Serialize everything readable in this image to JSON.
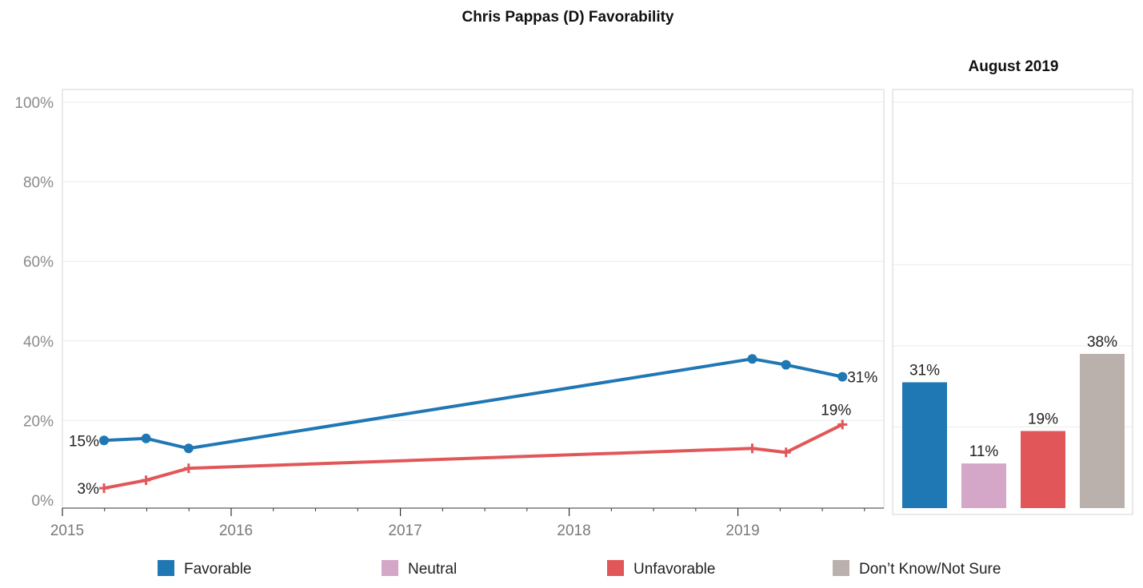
{
  "chart_data": [
    {
      "type": "line",
      "title": "Chris Pappas (D) Favorability",
      "x_axis": {
        "type": "date",
        "ticks": [
          "2015",
          "2016",
          "2017",
          "2018",
          "2019"
        ],
        "range": [
          "2015-01-01",
          "2019-10-01"
        ]
      },
      "y_axis": {
        "ticks": [
          "0%",
          "20%",
          "40%",
          "60%",
          "80%",
          "100%"
        ],
        "range": [
          0,
          100
        ]
      },
      "grid": true,
      "series": [
        {
          "name": "Favorable",
          "color": "#1f77b4",
          "marker": "circle",
          "x": [
            "2015-04-01",
            "2015-07-01",
            "2015-10-01",
            "2019-02-01",
            "2019-04-15",
            "2019-08-15"
          ],
          "values": [
            15,
            15.5,
            13,
            35.5,
            34,
            31
          ],
          "labels": [
            {
              "index": 0,
              "text": "15%"
            },
            {
              "index": 5,
              "text": "31%"
            }
          ]
        },
        {
          "name": "Unfavorable",
          "color": "#e15759",
          "marker": "plus",
          "x": [
            "2015-04-01",
            "2015-07-01",
            "2015-10-01",
            "2019-02-01",
            "2019-04-15",
            "2019-08-15"
          ],
          "values": [
            3,
            5,
            8,
            13,
            12,
            19
          ],
          "labels": [
            {
              "index": 0,
              "text": "3%"
            },
            {
              "index": 5,
              "text": "19%"
            }
          ]
        }
      ]
    },
    {
      "type": "bar",
      "title": "August 2019",
      "categories": [
        "Favorable",
        "Neutral",
        "Unfavorable",
        "Don’t Know/Not Sure"
      ],
      "values": [
        31,
        11,
        19,
        38
      ],
      "value_labels": [
        "31%",
        "11%",
        "19%",
        "38%"
      ],
      "colors": [
        "#1f77b4",
        "#d4a6c8",
        "#e15759",
        "#bab0ac"
      ],
      "ylim": [
        0,
        100
      ],
      "grid": true
    }
  ],
  "legend": {
    "placement": "bottom",
    "items": [
      {
        "label": "Favorable",
        "color": "#1f77b4"
      },
      {
        "label": "Neutral",
        "color": "#d4a6c8"
      },
      {
        "label": "Unfavorable",
        "color": "#e15759"
      },
      {
        "label": "Don’t Know/Not Sure",
        "color": "#bab0ac"
      }
    ]
  }
}
